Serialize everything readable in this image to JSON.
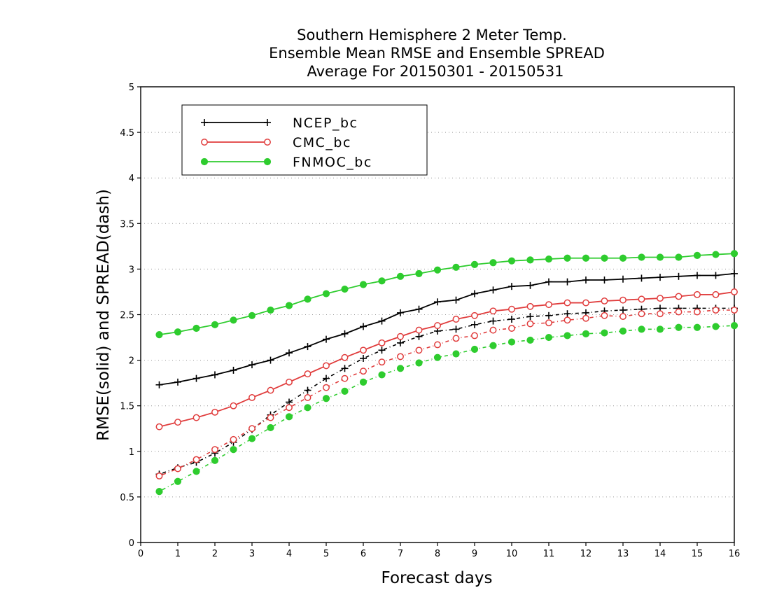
{
  "chart_data": {
    "type": "line",
    "title_lines": [
      "Southern Hemisphere 2 Meter Temp.",
      "Ensemble Mean RMSE and Ensemble SPREAD",
      "Average For 20150301 - 20150531"
    ],
    "xlabel": "Forecast days",
    "ylabel": "RMSE(solid) and SPREAD(dash)",
    "xlim": [
      0,
      16
    ],
    "ylim": [
      0,
      5
    ],
    "x_ticks": [
      "0",
      "1",
      "2",
      "3",
      "4",
      "5",
      "6",
      "7",
      "8",
      "9",
      "10",
      "11",
      "12",
      "13",
      "14",
      "15",
      "16"
    ],
    "y_ticks": [
      "0",
      "0.5",
      "1",
      "1.5",
      "2",
      "2.5",
      "3",
      "3.5",
      "4",
      "4.5",
      "5"
    ],
    "grid": "horizontal dotted",
    "legend_position": "top-left",
    "x": [
      0.5,
      1,
      1.5,
      2,
      2.5,
      3,
      3.5,
      4,
      4.5,
      5,
      5.5,
      6,
      6.5,
      7,
      7.5,
      8,
      8.5,
      9,
      9.5,
      10,
      10.5,
      11,
      11.5,
      12,
      12.5,
      13,
      13.5,
      14,
      14.5,
      15,
      15.5,
      16
    ],
    "series": [
      {
        "name": "NCEP_bc",
        "color": "#000000",
        "marker": "plus",
        "rmse": [
          1.73,
          1.76,
          1.8,
          1.84,
          1.89,
          1.95,
          2.0,
          2.08,
          2.15,
          2.23,
          2.29,
          2.37,
          2.43,
          2.52,
          2.56,
          2.64,
          2.66,
          2.73,
          2.77,
          2.81,
          2.82,
          2.86,
          2.86,
          2.88,
          2.88,
          2.89,
          2.9,
          2.91,
          2.92,
          2.93,
          2.93,
          2.95
        ],
        "spread": [
          0.75,
          0.82,
          0.88,
          0.98,
          1.1,
          1.24,
          1.4,
          1.54,
          1.67,
          1.8,
          1.91,
          2.02,
          2.11,
          2.19,
          2.26,
          2.32,
          2.34,
          2.39,
          2.43,
          2.45,
          2.48,
          2.49,
          2.51,
          2.52,
          2.54,
          2.55,
          2.56,
          2.57,
          2.57,
          2.57,
          2.57,
          2.57
        ]
      },
      {
        "name": "CMC_bc",
        "color": "#e03c3c",
        "marker": "open-circle",
        "rmse": [
          1.27,
          1.32,
          1.37,
          1.43,
          1.5,
          1.59,
          1.67,
          1.76,
          1.85,
          1.94,
          2.03,
          2.11,
          2.19,
          2.26,
          2.33,
          2.38,
          2.45,
          2.49,
          2.54,
          2.56,
          2.59,
          2.61,
          2.63,
          2.63,
          2.65,
          2.66,
          2.67,
          2.68,
          2.7,
          2.72,
          2.72,
          2.75
        ],
        "spread": [
          0.73,
          0.81,
          0.91,
          1.02,
          1.13,
          1.25,
          1.37,
          1.48,
          1.59,
          1.7,
          1.8,
          1.88,
          1.98,
          2.04,
          2.11,
          2.17,
          2.24,
          2.27,
          2.33,
          2.35,
          2.4,
          2.41,
          2.44,
          2.46,
          2.49,
          2.48,
          2.51,
          2.51,
          2.53,
          2.53,
          2.55,
          2.55
        ]
      },
      {
        "name": "FNMOC_bc",
        "color": "#2ecc2e",
        "marker": "filled-circle",
        "rmse": [
          2.28,
          2.31,
          2.35,
          2.39,
          2.44,
          2.49,
          2.55,
          2.6,
          2.67,
          2.73,
          2.78,
          2.83,
          2.87,
          2.92,
          2.95,
          2.99,
          3.02,
          3.05,
          3.07,
          3.09,
          3.1,
          3.11,
          3.12,
          3.12,
          3.12,
          3.12,
          3.13,
          3.13,
          3.13,
          3.15,
          3.16,
          3.17
        ],
        "spread": [
          0.56,
          0.67,
          0.78,
          0.9,
          1.02,
          1.14,
          1.26,
          1.38,
          1.48,
          1.58,
          1.66,
          1.76,
          1.84,
          1.91,
          1.97,
          2.03,
          2.07,
          2.12,
          2.16,
          2.2,
          2.22,
          2.25,
          2.27,
          2.29,
          2.3,
          2.32,
          2.34,
          2.34,
          2.36,
          2.36,
          2.37,
          2.38
        ]
      }
    ]
  }
}
